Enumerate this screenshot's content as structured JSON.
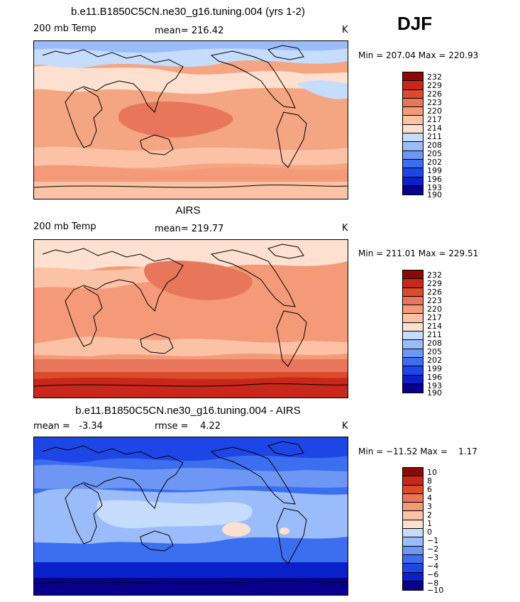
{
  "season": "DJF",
  "colors": {
    "scale": [
      "#08008c",
      "#0a20c8",
      "#1e46e6",
      "#3c6ef0",
      "#6e96f5",
      "#9bbcfa",
      "#c6dcfd",
      "#fde0cf",
      "#fbc2a6",
      "#f49a78",
      "#e8765a",
      "#dc4a2c",
      "#c8281a",
      "#8c0a05"
    ],
    "coastline": "#000000"
  },
  "panels": [
    {
      "title": "b.e11.B1850C5CN.ne30_g16.tuning.004 (yrs 1-2)",
      "left_label": "200 mb Temp",
      "center_label": "mean= 216.42",
      "unit": "K",
      "minmax": "Min = 207.04 Max = 220.93",
      "colorbar_labels": [
        "232",
        "229",
        "226",
        "223",
        "220",
        "217",
        "214",
        "211",
        "208",
        "205",
        "202",
        "199",
        "196",
        "193",
        "190"
      ]
    },
    {
      "title": "AIRS",
      "left_label": "200 mb Temp",
      "center_label": "mean= 219.77",
      "unit": "K",
      "minmax": "Min = 211.01 Max = 229.51",
      "colorbar_labels": [
        "232",
        "229",
        "226",
        "223",
        "220",
        "217",
        "214",
        "211",
        "208",
        "205",
        "202",
        "199",
        "196",
        "193",
        "190"
      ]
    },
    {
      "title": "b.e11.B1850C5CN.ne30_g16.tuning.004 - AIRS",
      "left_label": "mean =   -3.34",
      "center_label": "rmse =    4.22",
      "unit": "K",
      "minmax": "Min = −11.52 Max =    1.17",
      "colorbar_labels": [
        "10",
        "8",
        "6",
        "4",
        "3",
        "2",
        "1",
        "0",
        "−1",
        "−2",
        "−3",
        "−4",
        "−6",
        "−8",
        "−10"
      ]
    }
  ]
}
